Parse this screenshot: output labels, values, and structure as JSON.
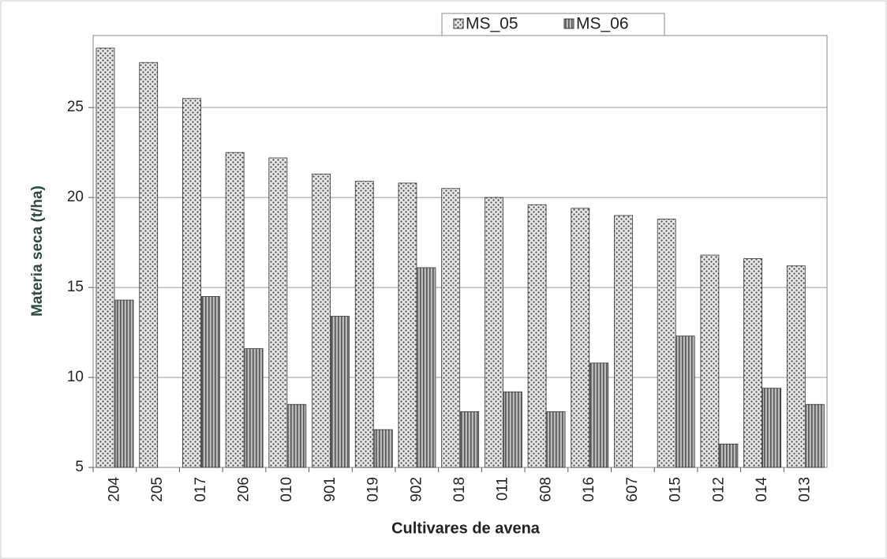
{
  "chart_data": {
    "type": "bar",
    "x_label": "Cultivares de avena",
    "y_label": "Materia seca (t/ha)",
    "categories": [
      "204",
      "205",
      "017",
      "206",
      "010",
      "901",
      "019",
      "902",
      "018",
      "011",
      "608",
      "016",
      "607",
      "015",
      "012",
      "014",
      "013"
    ],
    "series": [
      {
        "name": "MS_05",
        "color": "#d8d8d8",
        "values": [
          28.3,
          27.5,
          25.5,
          22.5,
          22.2,
          21.3,
          20.9,
          20.8,
          20.5,
          20.0,
          19.6,
          19.4,
          19.0,
          18.8,
          16.8,
          16.6,
          16.2
        ]
      },
      {
        "name": "MS_06",
        "color": "#9a9a9a",
        "values": [
          14.3,
          null,
          14.5,
          11.6,
          8.5,
          13.4,
          7.1,
          16.1,
          8.1,
          9.2,
          8.1,
          10.8,
          null,
          12.3,
          6.3,
          9.4,
          8.5
        ]
      }
    ],
    "ylim": [
      5,
      29
    ],
    "yticks": [
      5,
      10,
      15,
      20,
      25
    ],
    "grid": true,
    "legend": "top"
  }
}
